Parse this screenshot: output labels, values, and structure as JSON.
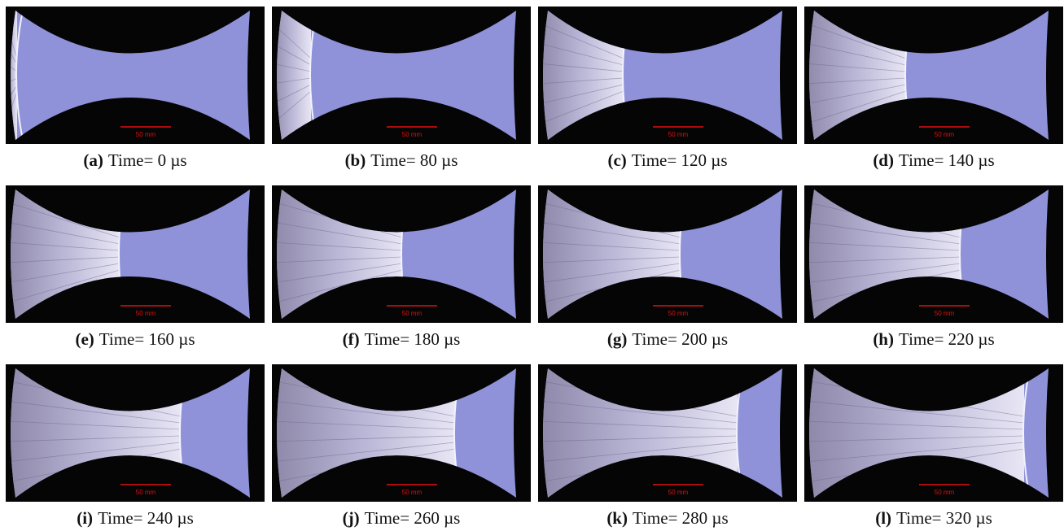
{
  "panels": [
    {
      "label": "(a)",
      "caption": "Time= 0 µs",
      "scale": "50 mm"
    },
    {
      "label": "(b)",
      "caption": "Time= 80 µs",
      "scale": "50 mm"
    },
    {
      "label": "(c)",
      "caption": "Time= 120 µs",
      "scale": "50 mm"
    },
    {
      "label": "(d)",
      "caption": "Time= 140 µs",
      "scale": "50 mm"
    },
    {
      "label": "(e)",
      "caption": "Time= 160 µs",
      "scale": "50 mm"
    },
    {
      "label": "(f)",
      "caption": "Time= 180 µs",
      "scale": "50 mm"
    },
    {
      "label": "(g)",
      "caption": "Time= 200 µs",
      "scale": "50 mm"
    },
    {
      "label": "(h)",
      "caption": "Time= 220 µs",
      "scale": "50 mm"
    },
    {
      "label": "(i)",
      "caption": "Time= 240 µs",
      "scale": "50 mm"
    },
    {
      "label": "(j)",
      "caption": "Time= 260 µs",
      "scale": "50 mm"
    },
    {
      "label": "(k)",
      "caption": "Time= 280 µs",
      "scale": "50 mm"
    },
    {
      "label": "(l)",
      "caption": "Time= 320 µs",
      "scale": "50 mm"
    }
  ]
}
